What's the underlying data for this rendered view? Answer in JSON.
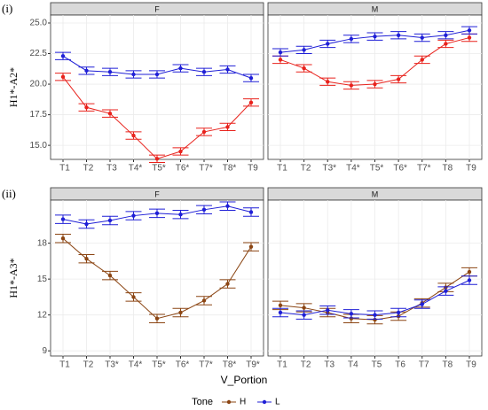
{
  "chart_data": [
    {
      "type": "line",
      "panel_label": "(i)",
      "title": "F",
      "y_label": "H1*-A2*",
      "categories": [
        "T1",
        "T2",
        "T3",
        "T4*",
        "T5*",
        "T6*",
        "T7*",
        "T8*",
        "T9"
      ],
      "series": [
        {
          "name": "H",
          "color": "#e8221c",
          "values": [
            20.6,
            18.1,
            17.6,
            15.8,
            13.9,
            14.5,
            16.1,
            16.5,
            18.5
          ],
          "errors": [
            0.3,
            0.3,
            0.3,
            0.3,
            0.3,
            0.3,
            0.3,
            0.3,
            0.3
          ]
        },
        {
          "name": "L",
          "color": "#1f1fd6",
          "values": [
            22.3,
            21.1,
            21.0,
            20.8,
            20.8,
            21.3,
            21.0,
            21.2,
            20.5
          ],
          "errors": [
            0.3,
            0.3,
            0.3,
            0.3,
            0.3,
            0.3,
            0.3,
            0.3,
            0.3
          ]
        }
      ],
      "ylim": [
        13.85,
        25.65
      ],
      "yticks": [
        {
          "value": 15,
          "label": "15.0"
        },
        {
          "value": 17.5,
          "label": "17.5"
        },
        {
          "value": 20,
          "label": "20.0"
        },
        {
          "value": 22.5,
          "label": "22.5"
        },
        {
          "value": 25,
          "label": "25.0"
        }
      ]
    },
    {
      "type": "line",
      "title": "M",
      "categories": [
        "T1",
        "T2",
        "T3*",
        "T4*",
        "T5*",
        "T6*",
        "T7*",
        "T8",
        "T9"
      ],
      "series": [
        {
          "name": "H",
          "color": "#e8221c",
          "values": [
            22.0,
            21.3,
            20.2,
            19.9,
            20.0,
            20.4,
            22.0,
            23.3,
            23.8
          ],
          "errors": [
            0.3,
            0.3,
            0.3,
            0.3,
            0.3,
            0.3,
            0.3,
            0.3,
            0.3
          ]
        },
        {
          "name": "L",
          "color": "#1f1fd6",
          "values": [
            22.6,
            22.8,
            23.3,
            23.7,
            23.9,
            24.0,
            23.8,
            24.0,
            24.4
          ],
          "errors": [
            0.3,
            0.3,
            0.3,
            0.3,
            0.3,
            0.3,
            0.3,
            0.3,
            0.3
          ]
        }
      ],
      "ylim": [
        13.85,
        25.65
      ],
      "yticks": [
        {
          "value": 15,
          "label": "15.0"
        },
        {
          "value": 17.5,
          "label": "17.5"
        },
        {
          "value": 20,
          "label": "20.0"
        },
        {
          "value": 22.5,
          "label": "22.5"
        },
        {
          "value": 25,
          "label": "25.0"
        }
      ]
    },
    {
      "type": "line",
      "panel_label": "(ii)",
      "title": "F",
      "y_label": "H1*-A3*",
      "categories": [
        "T1",
        "T2",
        "T3*",
        "T4*",
        "T5*",
        "T6*",
        "T7*",
        "T8*",
        "T9*"
      ],
      "series": [
        {
          "name": "H",
          "color": "#8b4513",
          "values": [
            18.4,
            16.7,
            15.3,
            13.5,
            11.7,
            12.2,
            13.2,
            14.6,
            17.7
          ],
          "errors": [
            0.35,
            0.35,
            0.35,
            0.35,
            0.35,
            0.35,
            0.35,
            0.35,
            0.35
          ]
        },
        {
          "name": "L",
          "color": "#1f1fd6",
          "values": [
            20.0,
            19.6,
            19.9,
            20.3,
            20.5,
            20.4,
            20.8,
            21.1,
            20.6
          ],
          "errors": [
            0.35,
            0.35,
            0.35,
            0.35,
            0.35,
            0.35,
            0.35,
            0.35,
            0.35
          ]
        }
      ],
      "ylim": [
        8.57,
        21.6
      ],
      "yticks": [
        9,
        12,
        15,
        18
      ]
    },
    {
      "type": "line",
      "title": "M",
      "categories": [
        "T1",
        "T2",
        "T3",
        "T4",
        "T5",
        "T6",
        "T7",
        "T8",
        "T9"
      ],
      "series": [
        {
          "name": "H",
          "color": "#8b4513",
          "values": [
            12.8,
            12.6,
            12.2,
            11.7,
            11.6,
            11.9,
            13.0,
            14.3,
            15.6
          ],
          "errors": [
            0.35,
            0.35,
            0.35,
            0.35,
            0.35,
            0.35,
            0.35,
            0.35,
            0.35
          ]
        },
        {
          "name": "L",
          "color": "#1f1fd6",
          "values": [
            12.2,
            12.0,
            12.4,
            12.1,
            12.0,
            12.2,
            12.9,
            14.0,
            14.9
          ],
          "errors": [
            0.35,
            0.35,
            0.35,
            0.35,
            0.35,
            0.35,
            0.35,
            0.35,
            0.35
          ]
        }
      ],
      "ylim": [
        8.57,
        21.6
      ],
      "yticks": [
        9,
        12,
        15,
        18
      ]
    }
  ],
  "x_label": "V_Portion",
  "legend_title": "Tone",
  "legend": "bottom"
}
